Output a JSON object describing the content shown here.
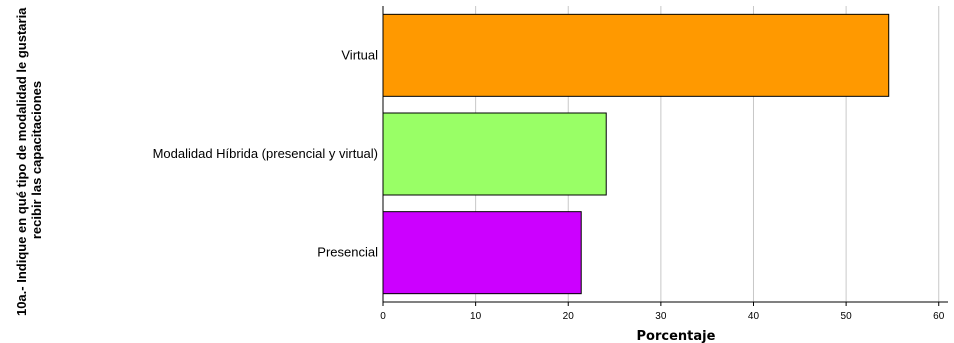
{
  "chart_data": {
    "type": "bar",
    "orientation": "horizontal",
    "categories": [
      "Virtual",
      "Modalidad Híbrida (presencial y virtual)",
      "Presencial"
    ],
    "values": [
      54.6,
      24.1,
      21.4
    ],
    "colors": [
      "#ff9900",
      "#99ff66",
      "#cc00ff"
    ],
    "xlabel": "Porcentaje",
    "ylabel_lines": [
      "10a.- Indique en qué tipo de modalidad le gustaria",
      "recibir las capacitaciones"
    ],
    "xlim": [
      0,
      61
    ],
    "xticks": [
      0,
      10,
      20,
      30,
      40,
      50,
      60
    ],
    "grid": true
  }
}
